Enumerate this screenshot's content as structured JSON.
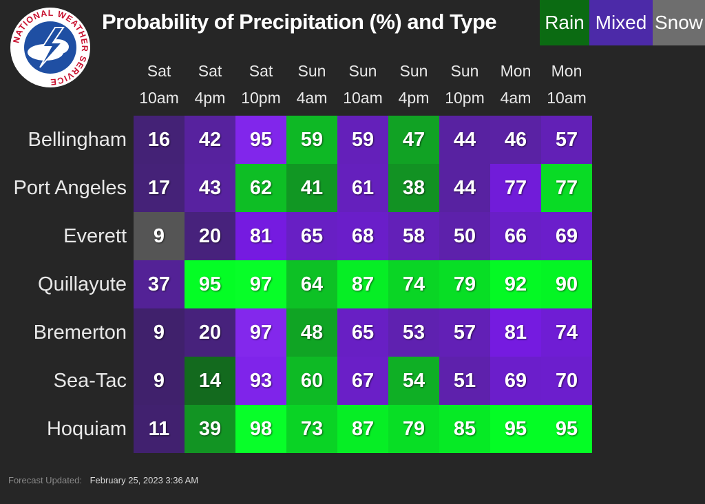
{
  "logo": {
    "ring_text": "NATIONAL WEATHER SERVICE",
    "colors": {
      "blue": "#1f4fa3",
      "red": "#c8102e"
    }
  },
  "title": "Probability of Precipitation (%) and Type",
  "legend": [
    {
      "label": "Rain",
      "color": "#0b6b12"
    },
    {
      "label": "Mixed",
      "color": "#4c2aa8"
    },
    {
      "label": "Snow",
      "color": "#6e6e6e"
    }
  ],
  "footer": {
    "label": "Forecast Updated:",
    "value": "February 25, 2023 3:36 AM"
  },
  "chart_data": {
    "type": "heatmap",
    "columns": [
      {
        "day": "Sat",
        "time": "10am"
      },
      {
        "day": "Sat",
        "time": "4pm"
      },
      {
        "day": "Sat",
        "time": "10pm"
      },
      {
        "day": "Sun",
        "time": "4am"
      },
      {
        "day": "Sun",
        "time": "10am"
      },
      {
        "day": "Sun",
        "time": "4pm"
      },
      {
        "day": "Sun",
        "time": "10pm"
      },
      {
        "day": "Mon",
        "time": "4am"
      },
      {
        "day": "Mon",
        "time": "10am"
      }
    ],
    "rows": [
      {
        "location": "Bellingham",
        "values": [
          16,
          42,
          95,
          59,
          59,
          47,
          44,
          46,
          57
        ],
        "types": [
          "Mixed",
          "Mixed",
          "Mixed",
          "Rain",
          "Mixed",
          "Rain",
          "Mixed",
          "Mixed",
          "Mixed"
        ]
      },
      {
        "location": "Port Angeles",
        "values": [
          17,
          43,
          62,
          41,
          61,
          38,
          44,
          77,
          77
        ],
        "types": [
          "Mixed",
          "Mixed",
          "Rain",
          "Rain",
          "Mixed",
          "Rain",
          "Mixed",
          "Mixed",
          "Rain"
        ]
      },
      {
        "location": "Everett",
        "values": [
          9,
          20,
          81,
          65,
          68,
          58,
          50,
          66,
          69
        ],
        "types": [
          "Snow",
          "Mixed",
          "Mixed",
          "Mixed",
          "Mixed",
          "Mixed",
          "Mixed",
          "Mixed",
          "Mixed"
        ]
      },
      {
        "location": "Quillayute",
        "values": [
          37,
          95,
          97,
          64,
          87,
          74,
          79,
          92,
          90
        ],
        "types": [
          "Mixed",
          "Rain",
          "Rain",
          "Rain",
          "Rain",
          "Rain",
          "Rain",
          "Rain",
          "Rain"
        ]
      },
      {
        "location": "Bremerton",
        "values": [
          9,
          20,
          97,
          48,
          65,
          53,
          57,
          81,
          74
        ],
        "types": [
          "Mixed",
          "Mixed",
          "Mixed",
          "Rain",
          "Mixed",
          "Mixed",
          "Mixed",
          "Mixed",
          "Mixed"
        ]
      },
      {
        "location": "Sea-Tac",
        "values": [
          9,
          14,
          93,
          60,
          67,
          54,
          51,
          69,
          70
        ],
        "types": [
          "Mixed",
          "Rain",
          "Mixed",
          "Rain",
          "Mixed",
          "Rain",
          "Mixed",
          "Mixed",
          "Mixed"
        ]
      },
      {
        "location": "Hoquiam",
        "values": [
          11,
          39,
          98,
          73,
          87,
          79,
          85,
          95,
          95
        ],
        "types": [
          "Mixed",
          "Rain",
          "Rain",
          "Rain",
          "Rain",
          "Rain",
          "Rain",
          "Rain",
          "Rain"
        ]
      }
    ],
    "value_range": [
      0,
      100
    ]
  }
}
